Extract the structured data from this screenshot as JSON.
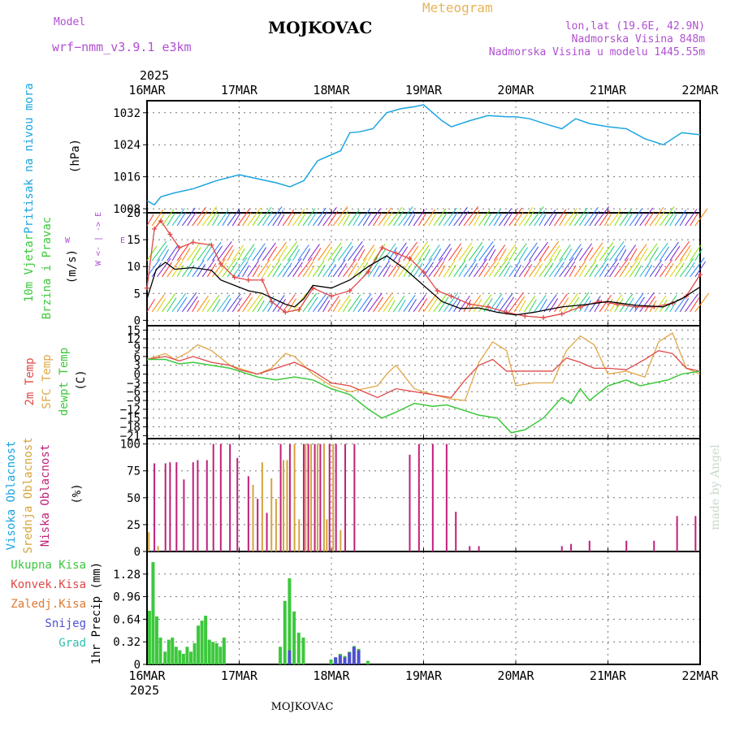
{
  "header": {
    "model_label": "Model",
    "model_name": "wrf−nmm_v3.9.1  e3km",
    "station": "MOJKOVAC",
    "meteogram": "Meteogram",
    "lonlat": "lon,lat (19.6E, 42.9N)",
    "elevation": "Nadmorska Visina 848m",
    "model_elevation": "Nadmorska Visina u modelu 1445.55m",
    "footer_station": "MOJKOVAC",
    "watermark": "made by Angel"
  },
  "colors": {
    "pressure": "#1ba5e0",
    "wind_speed": "#000000",
    "gust": "#e04848",
    "temp2m": "#e04848",
    "sfc_temp": "#e0a848",
    "dewpt": "#3cc83c",
    "cloud_high": "#1ba5e0",
    "cloud_mid": "#d4a43c",
    "cloud_low": "#c0207a",
    "total_precip": "#3cc83c",
    "conv_precip": "#e04848",
    "frozen_precip": "#e07830",
    "snow": "#5050d0",
    "grade": "#30c0b0",
    "model_label": "#b14fd2",
    "meteogram_label": "#e6b45a"
  },
  "chart_data": [
    {
      "type": "line",
      "name": "pressure",
      "ylabel": "Pritisak na nivou mora",
      "units": "(hPa)",
      "ylim": [
        1007,
        1035
      ],
      "yticks": [
        "1008",
        "1016",
        "1024",
        "1032"
      ],
      "x_days": [
        0,
        0.08,
        0.15,
        0.3,
        0.5,
        0.75,
        1.0,
        1.2,
        1.4,
        1.55,
        1.7,
        1.85,
        1.95,
        2.1,
        2.2,
        2.3,
        2.45,
        2.6,
        2.75,
        2.9,
        3.0,
        3.1,
        3.2,
        3.3,
        3.5,
        3.7,
        3.9,
        4.0,
        4.15,
        4.35,
        4.5,
        4.65,
        4.8,
        5.0,
        5.2,
        5.4,
        5.6,
        5.8,
        6.0
      ],
      "values": [
        1010,
        1009,
        1011,
        1012,
        1013,
        1015,
        1016.5,
        1015.5,
        1014.5,
        1013.5,
        1015,
        1020,
        1021,
        1022.5,
        1027,
        1027.2,
        1028,
        1032,
        1033,
        1033.5,
        1034,
        1032,
        1030,
        1028.5,
        1030,
        1031.3,
        1031,
        1031,
        1030.5,
        1029,
        1028,
        1030.5,
        1029.3,
        1028.5,
        1028,
        1025.5,
        1024,
        1027,
        1026.5
      ]
    },
    {
      "type": "line",
      "name": "wind",
      "ylabel": "10m Vjetar Brzina i Pravac",
      "units": "(m/s)",
      "ylim": [
        -1,
        20
      ],
      "yticks": [
        "0",
        "5",
        "10",
        "15",
        "20"
      ],
      "compass": "W <- | -> E",
      "series": [
        {
          "name": "speed",
          "x_days": [
            0,
            0.1,
            0.2,
            0.3,
            0.5,
            0.7,
            0.8,
            0.95,
            1.1,
            1.25,
            1.35,
            1.5,
            1.6,
            1.7,
            1.8,
            2.0,
            2.2,
            2.4,
            2.6,
            2.8,
            3.0,
            3.2,
            3.4,
            3.6,
            3.8,
            4.0,
            4.2,
            4.5,
            4.8,
            5.0,
            5.3,
            5.6,
            5.8,
            6.0
          ],
          "values": [
            4,
            9.5,
            10.8,
            9.5,
            9.8,
            9.3,
            7.5,
            6.5,
            5.5,
            5,
            4.2,
            3,
            2.5,
            4,
            6.5,
            6,
            7.5,
            10,
            12,
            9.5,
            6.5,
            3.5,
            2.2,
            2.3,
            1.5,
            1,
            1.5,
            2.5,
            3,
            3.5,
            2.8,
            2.5,
            4,
            6.2
          ]
        },
        {
          "name": "gust",
          "x_days": [
            0,
            0.08,
            0.15,
            0.25,
            0.35,
            0.5,
            0.7,
            0.8,
            0.95,
            1.1,
            1.25,
            1.35,
            1.5,
            1.65,
            1.8,
            2.0,
            2.2,
            2.4,
            2.55,
            2.7,
            2.85,
            3.0,
            3.15,
            3.3,
            3.5,
            3.7,
            3.9,
            4.1,
            4.3,
            4.5,
            4.7,
            4.9,
            5.1,
            5.3,
            5.5,
            5.7,
            5.85,
            6.0
          ],
          "values": [
            6,
            17,
            18.5,
            16,
            13.5,
            14.5,
            14,
            10.5,
            8,
            7.5,
            7.5,
            3.5,
            1.5,
            2,
            6,
            4.5,
            5.5,
            9,
            13.5,
            12.5,
            11.5,
            9,
            5.5,
            4.5,
            3,
            2.5,
            1.5,
            0.8,
            0.5,
            1.2,
            2.5,
            3.5,
            3,
            2.5,
            2.5,
            3.2,
            4.5,
            8.5
          ]
        }
      ]
    },
    {
      "type": "line",
      "name": "temperature",
      "ylabel": [
        "2m Temp",
        "SFC Temp",
        "dewpt Temp"
      ],
      "units": "(C)",
      "ylim": [
        -22,
        16.5
      ],
      "yticks": [
        "15",
        "12",
        "9",
        "6",
        "3",
        "0",
        "−3",
        "−6",
        "−9",
        "−12",
        "−15",
        "−18",
        "−21"
      ],
      "series": [
        {
          "name": "2m",
          "x_days": [
            0,
            0.2,
            0.35,
            0.5,
            0.7,
            0.9,
            1.0,
            1.2,
            1.4,
            1.6,
            1.8,
            2.0,
            2.2,
            2.35,
            2.5,
            2.7,
            2.9,
            3.1,
            3.3,
            3.45,
            3.6,
            3.75,
            3.9,
            4.0,
            4.2,
            4.4,
            4.55,
            4.7,
            4.85,
            5.0,
            5.2,
            5.4,
            5.55,
            5.7,
            5.85,
            6.0
          ],
          "values": [
            5,
            6,
            4.5,
            6,
            4,
            3,
            1.5,
            0,
            2,
            4,
            1,
            -3,
            -4,
            -6,
            -8,
            -5,
            -6,
            -7,
            -8,
            -2,
            3,
            5,
            1,
            1,
            1,
            1,
            5.5,
            4,
            2,
            2,
            1.5,
            5,
            8,
            7,
            2,
            1
          ]
        },
        {
          "name": "sfc",
          "x_days": [
            0,
            0.2,
            0.3,
            0.45,
            0.55,
            0.7,
            0.9,
            1.0,
            1.2,
            1.35,
            1.5,
            1.6,
            1.8,
            2.0,
            2.2,
            2.35,
            2.5,
            2.6,
            2.7,
            2.9,
            3.1,
            3.3,
            3.45,
            3.6,
            3.75,
            3.9,
            4.0,
            4.2,
            4.4,
            4.55,
            4.7,
            4.85,
            5.0,
            5.2,
            5.4,
            5.55,
            5.7,
            5.85,
            6.0
          ],
          "values": [
            5,
            7,
            5,
            7.5,
            10,
            8,
            3,
            2,
            0,
            2,
            7,
            6,
            0,
            -4,
            -6,
            -5,
            -4,
            0,
            3,
            -5,
            -7,
            -8.5,
            -9,
            4,
            11,
            8,
            -4,
            -3,
            -3,
            8,
            13,
            10,
            0,
            1,
            -1,
            11,
            14,
            2,
            0
          ]
        },
        {
          "name": "dewpt",
          "x_days": [
            0,
            0.2,
            0.35,
            0.5,
            0.7,
            0.9,
            1.0,
            1.2,
            1.4,
            1.6,
            1.8,
            2.0,
            2.2,
            2.4,
            2.55,
            2.7,
            2.9,
            3.1,
            3.25,
            3.4,
            3.6,
            3.8,
            3.95,
            4.1,
            4.3,
            4.5,
            4.6,
            4.7,
            4.8,
            5.0,
            5.2,
            5.35,
            5.5,
            5.65,
            5.8,
            6.0
          ],
          "values": [
            5,
            5,
            3.5,
            4,
            3,
            2,
            1,
            -1,
            -2,
            -1,
            -2,
            -5,
            -7,
            -12,
            -15,
            -13,
            -10,
            -11,
            -10.5,
            -12,
            -14,
            -15,
            -20,
            -19,
            -15,
            -8,
            -10,
            -5,
            -9,
            -4,
            -2,
            -4,
            -3,
            -2,
            0,
            1
          ]
        }
      ]
    },
    {
      "type": "bar",
      "name": "clouds",
      "ylabel": [
        "Visoka Oblacnost",
        "Srednja Oblacnost",
        "Niska Oblacnost"
      ],
      "units": "(%)",
      "ylim": [
        0,
        105
      ],
      "yticks": [
        "0",
        "25",
        "50",
        "75",
        "100"
      ],
      "series": [
        {
          "name": "low",
          "points": [
            [
              0.08,
              82
            ],
            [
              0.2,
              82
            ],
            [
              0.25,
              83
            ],
            [
              0.32,
              83
            ],
            [
              0.4,
              67
            ],
            [
              0.5,
              83
            ],
            [
              0.55,
              85
            ],
            [
              0.65,
              85
            ],
            [
              0.72,
              100
            ],
            [
              0.8,
              100
            ],
            [
              0.9,
              100
            ],
            [
              0.98,
              87
            ],
            [
              1.1,
              70
            ],
            [
              1.2,
              49
            ],
            [
              1.3,
              36
            ],
            [
              1.45,
              100
            ],
            [
              1.55,
              100
            ],
            [
              1.7,
              100
            ],
            [
              1.75,
              100
            ],
            [
              1.82,
              100
            ],
            [
              1.88,
              100
            ],
            [
              1.98,
              100
            ],
            [
              2.05,
              100
            ],
            [
              2.15,
              100
            ],
            [
              2.25,
              100
            ],
            [
              2.85,
              90
            ],
            [
              2.95,
              100
            ],
            [
              3.1,
              100
            ],
            [
              3.25,
              100
            ],
            [
              3.35,
              37
            ],
            [
              3.5,
              5
            ],
            [
              3.6,
              5
            ],
            [
              4.5,
              5
            ],
            [
              4.6,
              7
            ],
            [
              4.8,
              10
            ],
            [
              5.2,
              10
            ],
            [
              5.5,
              10
            ],
            [
              5.75,
              33
            ],
            [
              5.95,
              33
            ]
          ]
        },
        {
          "name": "mid",
          "points": [
            [
              0.02,
              18
            ],
            [
              0.12,
              5
            ],
            [
              1.15,
              62
            ],
            [
              1.25,
              83
            ],
            [
              1.35,
              68
            ],
            [
              1.4,
              49
            ],
            [
              1.48,
              85
            ],
            [
              1.52,
              85
            ],
            [
              1.6,
              100
            ],
            [
              1.65,
              30
            ],
            [
              1.72,
              100
            ],
            [
              1.78,
              100
            ],
            [
              1.85,
              100
            ],
            [
              1.92,
              100
            ],
            [
              1.95,
              30
            ],
            [
              2.02,
              100
            ],
            [
              2.1,
              20
            ]
          ]
        },
        {
          "name": "high",
          "points": [
            [
              0.05,
              1
            ]
          ]
        }
      ]
    },
    {
      "type": "bar",
      "name": "precip",
      "ylabel": "1hr Precip",
      "units": "(mm)",
      "ylim": [
        0,
        1.6
      ],
      "yticks": [
        "0",
        "0.32",
        "0.64",
        "0.96",
        "1.28"
      ],
      "legend": [
        "Ukupna Kisa",
        "Konvek.Kisa",
        "Zaledj.Kisa",
        "Snijeg",
        "Grad"
      ],
      "series": [
        {
          "name": "total",
          "points": [
            [
              0.03,
              0.76
            ],
            [
              0.07,
              1.45
            ],
            [
              0.11,
              0.68
            ],
            [
              0.15,
              0.38
            ],
            [
              0.2,
              0.18
            ],
            [
              0.24,
              0.35
            ],
            [
              0.28,
              0.38
            ],
            [
              0.32,
              0.25
            ],
            [
              0.36,
              0.2
            ],
            [
              0.4,
              0.15
            ],
            [
              0.44,
              0.25
            ],
            [
              0.48,
              0.18
            ],
            [
              0.52,
              0.3
            ],
            [
              0.56,
              0.55
            ],
            [
              0.6,
              0.62
            ],
            [
              0.64,
              0.69
            ],
            [
              0.68,
              0.35
            ],
            [
              0.72,
              0.32
            ],
            [
              0.76,
              0.3
            ],
            [
              0.8,
              0.25
            ],
            [
              0.84,
              0.38
            ],
            [
              1.45,
              0.25
            ],
            [
              1.5,
              0.9
            ],
            [
              1.55,
              1.22
            ],
            [
              1.6,
              0.75
            ],
            [
              1.65,
              0.45
            ],
            [
              1.7,
              0.38
            ],
            [
              2.0,
              0.07
            ],
            [
              2.05,
              0.1
            ],
            [
              2.1,
              0.15
            ],
            [
              2.15,
              0.12
            ],
            [
              2.2,
              0.18
            ],
            [
              2.25,
              0.26
            ],
            [
              2.3,
              0.22
            ],
            [
              2.4,
              0.05
            ]
          ]
        },
        {
          "name": "snow",
          "points": [
            [
              1.55,
              0.2
            ],
            [
              2.05,
              0.1
            ],
            [
              2.1,
              0.13
            ],
            [
              2.15,
              0.1
            ],
            [
              2.2,
              0.17
            ],
            [
              2.25,
              0.25
            ],
            [
              2.3,
              0.2
            ]
          ]
        }
      ]
    }
  ],
  "time_axis": {
    "start_label": "16MAR",
    "labels": [
      "16MAR",
      "17MAR",
      "18MAR",
      "19MAR",
      "20MAR",
      "21MAR",
      "22MAR"
    ],
    "year": "2025"
  },
  "side_labels": {
    "pressure": "Pritisak na nivou mora",
    "wind_a": "10m Vjetar",
    "wind_b": "Brzina i Pravac",
    "temp_a": "2m Temp",
    "temp_b": "SFC Temp",
    "temp_c": "dewpt Temp",
    "cloud_a": "Visoka Oblacnost",
    "cloud_b": "Srednja Oblacnost",
    "cloud_c": "Niska Oblacnost"
  }
}
